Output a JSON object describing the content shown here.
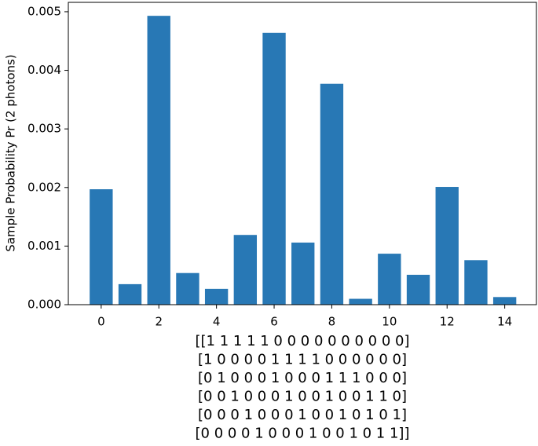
{
  "chart_data": {
    "type": "bar",
    "x": [
      0,
      1,
      2,
      3,
      4,
      5,
      6,
      7,
      8,
      9,
      10,
      11,
      12,
      13,
      14
    ],
    "values": [
      0.00197,
      0.00035,
      0.00493,
      0.00054,
      0.00027,
      0.00119,
      0.00464,
      0.00106,
      0.00377,
      0.0001,
      0.00087,
      0.00051,
      0.00201,
      0.00076,
      0.00013
    ],
    "color": "#2878b5",
    "ylabel": "Sample Probability Pr (2 photons)",
    "xlabel": [
      "[[1 1 1 1 1 0 0 0 0 0 0 0 0 0 0]",
      "[1 0 0 0 0 1 1 1 1 0 0 0 0 0 0]",
      "[0 1 0 0 0 1 0 0 0 1 1 1 0 0 0]",
      "[0 0 1 0 0 0 1 0 0 1 0 0 1 1 0]",
      "[0 0 0 1 0 0 0 1 0 0 1 0 1 0 1]",
      "[0 0 0 0 1 0 0 0 1 0 0 1 0 1 1]]"
    ],
    "xlim": [
      -1.14,
      15.1
    ],
    "ylim": [
      0,
      0.00516
    ],
    "xticks": [
      0,
      2,
      4,
      6,
      8,
      10,
      12,
      14
    ],
    "yticks": [
      {
        "value": 0,
        "label": "0.000"
      },
      {
        "value": 0.001,
        "label": "0.001"
      },
      {
        "value": 0.002,
        "label": "0.002"
      },
      {
        "value": 0.003,
        "label": "0.003"
      },
      {
        "value": 0.004,
        "label": "0.004"
      },
      {
        "value": 0.005,
        "label": "0.005"
      }
    ]
  }
}
